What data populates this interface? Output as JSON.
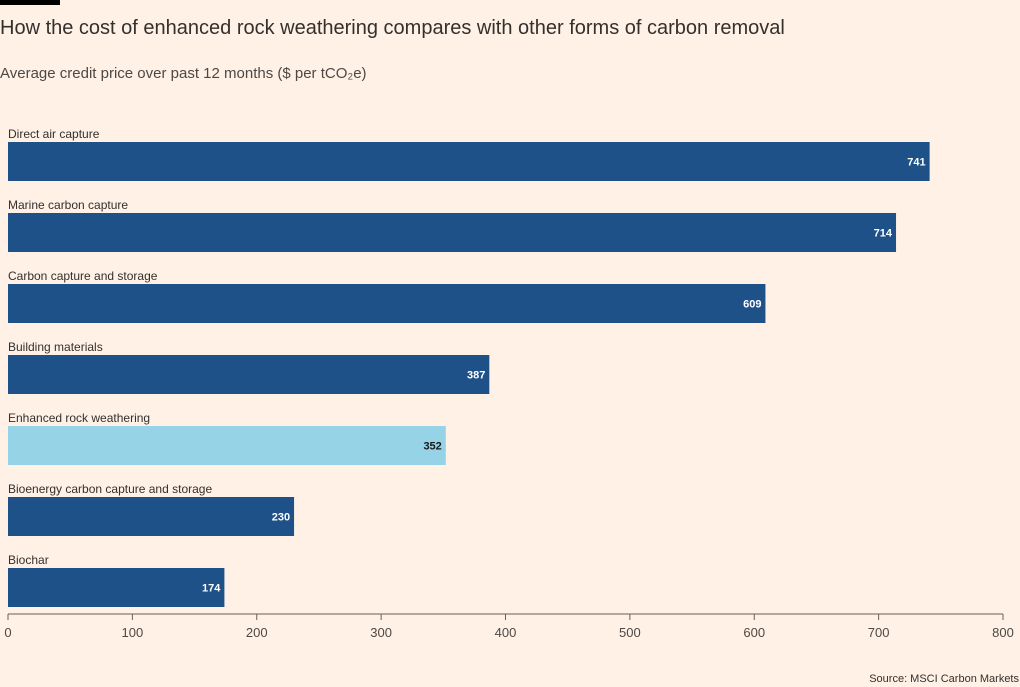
{
  "chart_data": {
    "type": "bar",
    "orientation": "horizontal",
    "title": "How the cost of enhanced rock weathering compares with other forms of carbon removal",
    "subtitle": "Average credit price over past 12 months ($ per tCO₂e)",
    "categories": [
      "Direct air capture",
      "Marine carbon capture",
      "Carbon capture and storage",
      "Building materials",
      "Enhanced rock weathering",
      "Bioenergy carbon capture and storage",
      "Biochar"
    ],
    "values": [
      741,
      714,
      609,
      387,
      352,
      230,
      174
    ],
    "value_labels": [
      "741",
      "714",
      "609",
      "387",
      "352",
      "230",
      "174"
    ],
    "highlight_category": "Enhanced rock weathering",
    "xlim": [
      0,
      800
    ],
    "x_ticks": [
      0,
      100,
      200,
      300,
      400,
      500,
      600,
      700,
      800
    ],
    "x_tick_labels": [
      "0",
      "100",
      "200",
      "300",
      "400",
      "500",
      "600",
      "700",
      "800"
    ],
    "xlabel": "",
    "ylabel": "",
    "grid": false,
    "source": "Source: MSCI Carbon Markets",
    "colors": {
      "bar": "#1f5189",
      "highlight_bar": "#96d3e6",
      "label_on_bar": "#ffffff",
      "label_on_highlight": "#1a1a1a",
      "axis": "#66605c",
      "background": "#fff1e5"
    }
  }
}
